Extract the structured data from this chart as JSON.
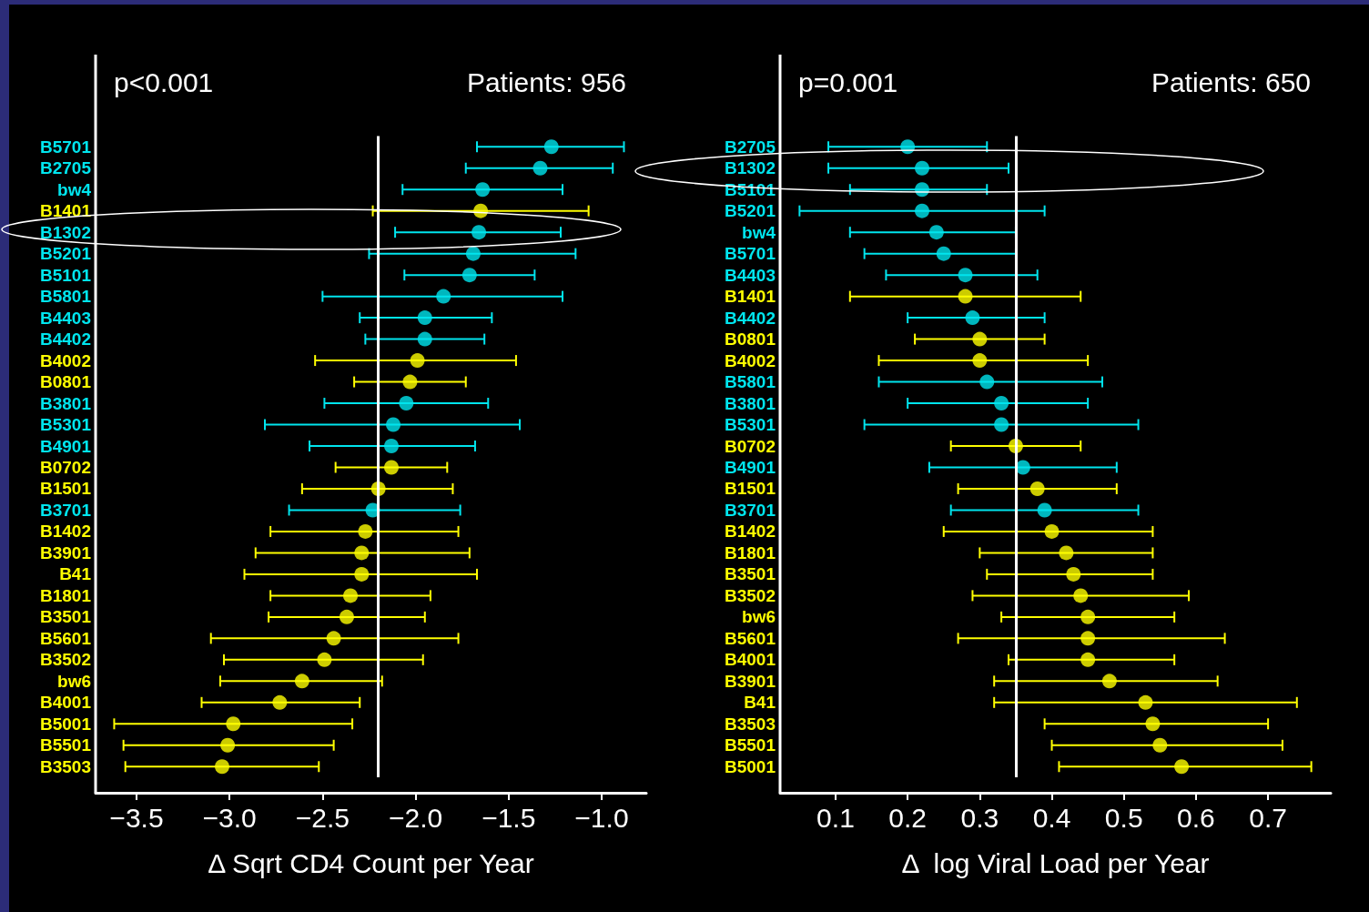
{
  "chart_data": [
    {
      "type": "scatter",
      "orientation": "horizontal",
      "annotations": [
        "p<0.001",
        "Patients: 956"
      ],
      "xlabel": "Δ Sqrt CD4 Count per Year",
      "categories": [
        "B5701",
        "B2705",
        "bw4",
        "B1401",
        "B1302",
        "B5201",
        "B5101",
        "B5801",
        "B4403",
        "B4402",
        "B4002",
        "B0801",
        "B3801",
        "B5301",
        "B4901",
        "B0702",
        "B1501",
        "B3701",
        "B1402",
        "B3901",
        "B41",
        "B1801",
        "B3501",
        "B5601",
        "B3502",
        "bw6",
        "B4001",
        "B5001",
        "B5501",
        "B3503"
      ],
      "values": [
        -1.27,
        -1.33,
        -1.64,
        -1.65,
        -1.66,
        -1.69,
        -1.71,
        -1.85,
        -1.95,
        -1.95,
        -1.99,
        -2.03,
        -2.05,
        -2.12,
        -2.13,
        -2.13,
        -2.2,
        -2.23,
        -2.27,
        -2.29,
        -2.29,
        -2.35,
        -2.37,
        -2.44,
        -2.49,
        -2.61,
        -2.73,
        -2.98,
        -3.01,
        -3.04
      ],
      "errors": [
        [
          -1.67,
          -0.88
        ],
        [
          -1.73,
          -0.94
        ],
        [
          -2.07,
          -1.21
        ],
        [
          -2.23,
          -1.07
        ],
        [
          -2.11,
          -1.22
        ],
        [
          -2.25,
          -1.14
        ],
        [
          -2.06,
          -1.36
        ],
        [
          -2.5,
          -1.21
        ],
        [
          -2.3,
          -1.59
        ],
        [
          -2.27,
          -1.63
        ],
        [
          -2.54,
          -1.46
        ],
        [
          -2.33,
          -1.73
        ],
        [
          -2.49,
          -1.61
        ],
        [
          -2.81,
          -1.44
        ],
        [
          -2.57,
          -1.68
        ],
        [
          -2.43,
          -1.83
        ],
        [
          -2.61,
          -1.8
        ],
        [
          -2.68,
          -1.76
        ],
        [
          -2.78,
          -1.77
        ],
        [
          -2.86,
          -1.71
        ],
        [
          -2.92,
          -1.67
        ],
        [
          -2.78,
          -1.92
        ],
        [
          -2.79,
          -1.95
        ],
        [
          -3.1,
          -1.77
        ],
        [
          -3.03,
          -1.96
        ],
        [
          -3.05,
          -2.18
        ],
        [
          -3.15,
          -2.3
        ],
        [
          -3.62,
          -2.34
        ],
        [
          -3.57,
          -2.44
        ],
        [
          -3.56,
          -2.52
        ]
      ],
      "colors": [
        "#00e5ee",
        "#00e5ee",
        "#00e5ee",
        "#ffff00",
        "#00e5ee",
        "#00e5ee",
        "#00e5ee",
        "#00e5ee",
        "#00e5ee",
        "#00e5ee",
        "#ffff00",
        "#ffff00",
        "#00e5ee",
        "#00e5ee",
        "#00e5ee",
        "#ffff00",
        "#ffff00",
        "#00e5ee",
        "#ffff00",
        "#ffff00",
        "#ffff00",
        "#ffff00",
        "#ffff00",
        "#ffff00",
        "#ffff00",
        "#ffff00",
        "#ffff00",
        "#ffff00",
        "#ffff00",
        "#ffff00"
      ],
      "xlim": [
        -3.72,
        -0.76
      ],
      "xticks": [
        {
          "value": -3.5,
          "label": "−3.5"
        },
        {
          "value": -3,
          "label": "−3.0"
        },
        {
          "value": -2.5,
          "label": "−2.5"
        },
        {
          "value": -2,
          "label": "−2.0"
        },
        {
          "value": -1.5,
          "label": "−1.5"
        },
        {
          "value": -1,
          "label": "−1.0"
        }
      ],
      "ref_lines": [
        {
          "axis": "x",
          "value": -2.2,
          "color": "#ffffff"
        }
      ],
      "marker": "circle"
    },
    {
      "type": "scatter",
      "orientation": "horizontal",
      "annotations": [
        "p=0.001",
        "Patients: 650"
      ],
      "xlabel": "Δ  log Viral Load per Year",
      "categories": [
        "B2705",
        "B1302",
        "B5101",
        "B5201",
        "bw4",
        "B5701",
        "B4403",
        "B1401",
        "B4402",
        "B0801",
        "B4002",
        "B5801",
        "B3801",
        "B5301",
        "B0702",
        "B4901",
        "B1501",
        "B3701",
        "B1402",
        "B1801",
        "B3501",
        "B3502",
        "bw6",
        "B5601",
        "B4001",
        "B3901",
        "B41",
        "B3503",
        "B5501",
        "B5001"
      ],
      "values": [
        0.2,
        0.22,
        0.22,
        0.22,
        0.24,
        0.25,
        0.28,
        0.28,
        0.29,
        0.3,
        0.3,
        0.31,
        0.33,
        0.33,
        0.35,
        0.36,
        0.38,
        0.39,
        0.4,
        0.42,
        0.43,
        0.44,
        0.45,
        0.45,
        0.45,
        0.48,
        0.53,
        0.54,
        0.55,
        0.58
      ],
      "errors": [
        [
          0.09,
          0.31
        ],
        [
          0.09,
          0.34
        ],
        [
          0.12,
          0.31
        ],
        [
          0.05,
          0.39
        ],
        [
          0.12,
          0.35
        ],
        [
          0.14,
          0.35
        ],
        [
          0.17,
          0.38
        ],
        [
          0.12,
          0.44
        ],
        [
          0.2,
          0.39
        ],
        [
          0.21,
          0.39
        ],
        [
          0.16,
          0.45
        ],
        [
          0.16,
          0.47
        ],
        [
          0.2,
          0.45
        ],
        [
          0.14,
          0.52
        ],
        [
          0.26,
          0.44
        ],
        [
          0.23,
          0.49
        ],
        [
          0.27,
          0.49
        ],
        [
          0.26,
          0.52
        ],
        [
          0.25,
          0.54
        ],
        [
          0.3,
          0.54
        ],
        [
          0.31,
          0.54
        ],
        [
          0.29,
          0.59
        ],
        [
          0.33,
          0.57
        ],
        [
          0.27,
          0.64
        ],
        [
          0.34,
          0.57
        ],
        [
          0.32,
          0.63
        ],
        [
          0.32,
          0.74
        ],
        [
          0.39,
          0.7
        ],
        [
          0.4,
          0.72
        ],
        [
          0.41,
          0.76
        ]
      ],
      "colors": [
        "#00e5ee",
        "#00e5ee",
        "#00e5ee",
        "#00e5ee",
        "#00e5ee",
        "#00e5ee",
        "#00e5ee",
        "#ffff00",
        "#00e5ee",
        "#ffff00",
        "#ffff00",
        "#00e5ee",
        "#00e5ee",
        "#00e5ee",
        "#ffff00",
        "#00e5ee",
        "#ffff00",
        "#00e5ee",
        "#ffff00",
        "#ffff00",
        "#ffff00",
        "#ffff00",
        "#ffff00",
        "#ffff00",
        "#ffff00",
        "#ffff00",
        "#ffff00",
        "#ffff00",
        "#ffff00",
        "#ffff00"
      ],
      "xlim": [
        0.023,
        0.787
      ],
      "xticks": [
        0.1,
        0.2,
        0.3,
        0.4,
        0.5,
        0.6,
        0.7
      ],
      "ref_lines": [
        {
          "axis": "x",
          "value": 0.35,
          "color": "#ffffff"
        }
      ],
      "marker": "circle"
    }
  ]
}
